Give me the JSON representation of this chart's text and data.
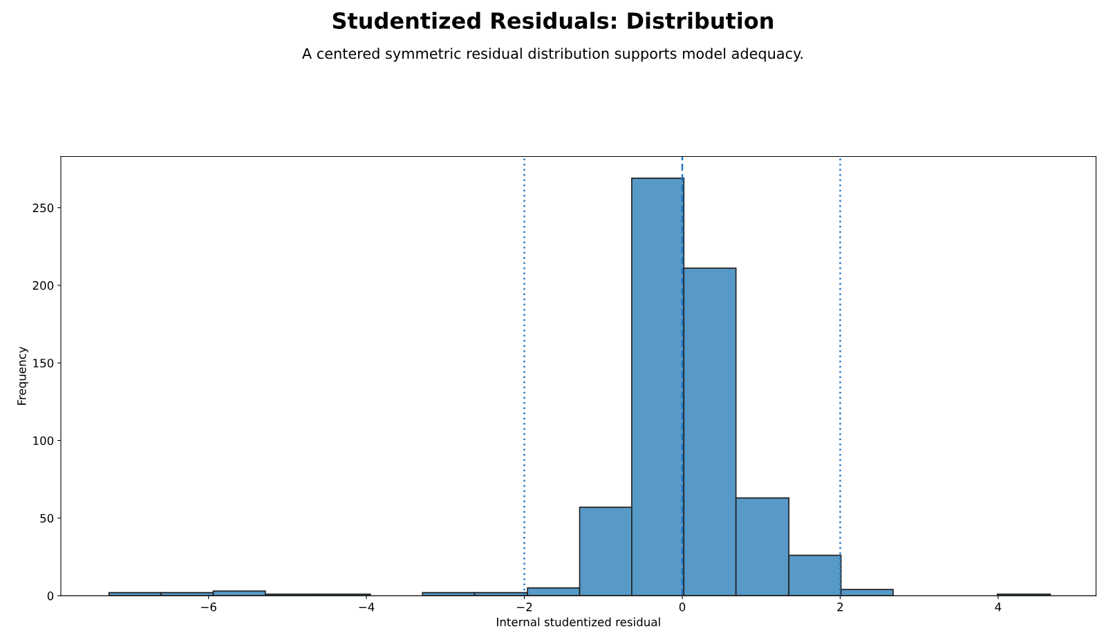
{
  "chart_data": {
    "type": "histogram",
    "title": "Studentized Residuals: Distribution",
    "subtitle": "A centered symmetric residual distribution supports model adequacy.",
    "xlabel": "Internal studentized residual",
    "ylabel": "Frequency",
    "bins": [
      -7.26,
      -6.6,
      -5.94,
      -5.28,
      -4.61,
      -3.95,
      -3.29,
      -2.63,
      -1.96,
      -1.3,
      -0.64,
      0.02,
      0.68,
      1.35,
      2.01,
      2.67,
      3.99,
      4.66
    ],
    "values": [
      2,
      2,
      3,
      1,
      1,
      0,
      2,
      2,
      5,
      57,
      269,
      211,
      63,
      26,
      4,
      0,
      1
    ],
    "color": "#5799c7",
    "xlim": [
      -7.87,
      5.24
    ],
    "ylim": [
      0,
      283
    ],
    "xticks": [
      {
        "value": -6,
        "label": "−6"
      },
      {
        "value": -4,
        "label": "−4"
      },
      {
        "value": -2,
        "label": "−2"
      },
      0,
      2,
      4
    ],
    "yticks": [
      0,
      50,
      100,
      150,
      200,
      250
    ],
    "ref_lines": [
      {
        "axis": "x",
        "value": -2,
        "color": "#1f77c4",
        "line_style": "dotted"
      },
      {
        "axis": "x",
        "value": 0,
        "color": "#1f77c4",
        "line_style": "dashed"
      },
      {
        "axis": "x",
        "value": 2,
        "color": "#1f77c4",
        "line_style": "dotted"
      }
    ],
    "grid": false
  }
}
